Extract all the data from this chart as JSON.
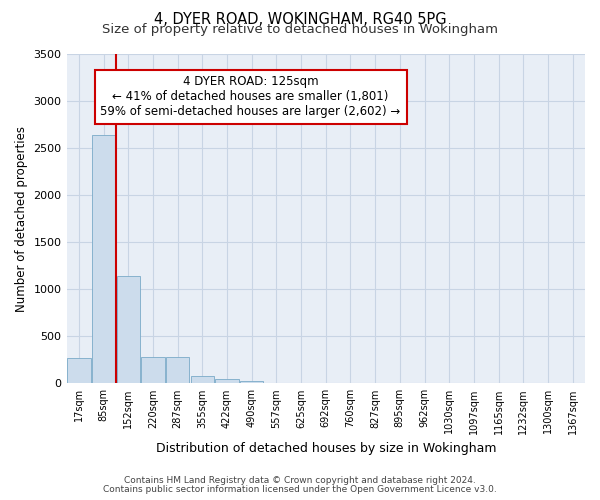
{
  "title": "4, DYER ROAD, WOKINGHAM, RG40 5PG",
  "subtitle": "Size of property relative to detached houses in Wokingham",
  "xlabel": "Distribution of detached houses by size in Wokingham",
  "ylabel": "Number of detached properties",
  "footer_line1": "Contains HM Land Registry data © Crown copyright and database right 2024.",
  "footer_line2": "Contains public sector information licensed under the Open Government Licence v3.0.",
  "bar_labels": [
    "17sqm",
    "85sqm",
    "152sqm",
    "220sqm",
    "287sqm",
    "355sqm",
    "422sqm",
    "490sqm",
    "557sqm",
    "625sqm",
    "692sqm",
    "760sqm",
    "827sqm",
    "895sqm",
    "962sqm",
    "1030sqm",
    "1097sqm",
    "1165sqm",
    "1232sqm",
    "1300sqm",
    "1367sqm"
  ],
  "bar_values": [
    270,
    2640,
    1140,
    280,
    280,
    80,
    45,
    28,
    5,
    3,
    2,
    1,
    1,
    0,
    0,
    0,
    0,
    0,
    0,
    0,
    0
  ],
  "bar_color": "#ccdcec",
  "bar_edge_color": "#7aaac8",
  "grid_color": "#c8d4e4",
  "background_color": "#e8eef6",
  "ylim": [
    0,
    3500
  ],
  "yticks": [
    0,
    500,
    1000,
    1500,
    2000,
    2500,
    3000,
    3500
  ],
  "red_line_x": 1.5,
  "annotation_text": "4 DYER ROAD: 125sqm\n← 41% of detached houses are smaller (1,801)\n59% of semi-detached houses are larger (2,602) →",
  "annotation_box_color": "#ffffff",
  "annotation_box_edge": "#cc0000",
  "red_line_color": "#cc0000",
  "title_fontsize": 10.5,
  "subtitle_fontsize": 9.5,
  "tick_fontsize": 7,
  "ylabel_fontsize": 8.5,
  "xlabel_fontsize": 9,
  "annotation_fontsize": 8.5,
  "footer_fontsize": 6.5
}
